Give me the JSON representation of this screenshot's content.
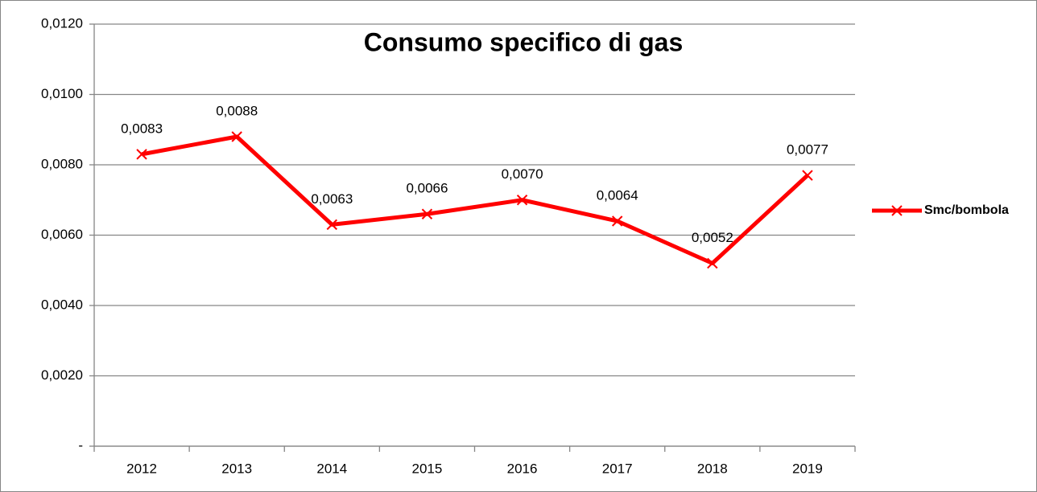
{
  "chart_data": {
    "type": "line",
    "title": "Consumo specifico di gas",
    "categories": [
      "2012",
      "2013",
      "2014",
      "2015",
      "2016",
      "2017",
      "2018",
      "2019"
    ],
    "series": [
      {
        "name": "Smc/bombola",
        "color": "#ff0000",
        "values": [
          0.0083,
          0.0088,
          0.0063,
          0.0066,
          0.007,
          0.0064,
          0.0052,
          0.0077
        ],
        "value_labels": [
          "0,0083",
          "0,0088",
          "0,0063",
          "0,0066",
          "0,0070",
          "0,0064",
          "0,0052",
          "0,0077"
        ]
      }
    ],
    "ylim": [
      0,
      0.012
    ],
    "yticks": [
      {
        "value": 0,
        "label": "-"
      },
      {
        "value": 0.002,
        "label": "0,0020"
      },
      {
        "value": 0.004,
        "label": "0,0040"
      },
      {
        "value": 0.006,
        "label": "0,0060"
      },
      {
        "value": 0.008,
        "label": "0,0080"
      },
      {
        "value": 0.01,
        "label": "0,0100"
      },
      {
        "value": 0.012,
        "label": "0,0120"
      }
    ],
    "grid": true,
    "legend": "right"
  }
}
